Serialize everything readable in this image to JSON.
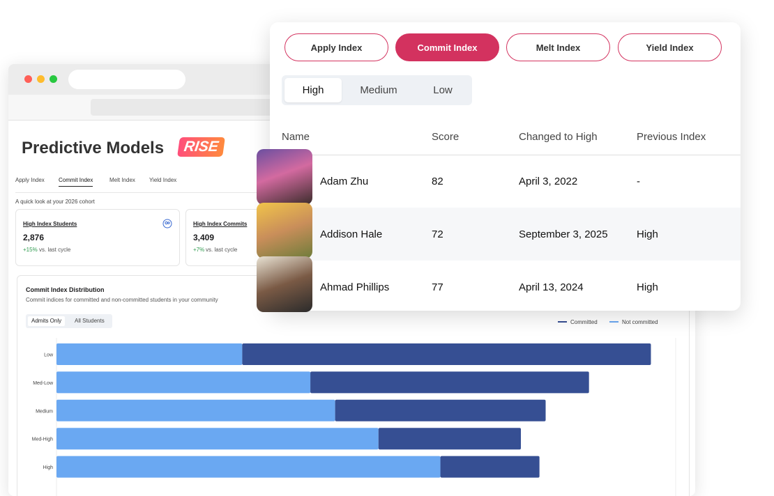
{
  "page": {
    "title": "Predictive Models",
    "badge": "RISE",
    "tabs": [
      "Apply Index",
      "Commit Index",
      "Melt Index",
      "Yield Index"
    ],
    "cohort_note": "A quick look at your 2026 cohort",
    "cards": [
      {
        "label": "High Index Students",
        "value": "2,876",
        "change": "+15%",
        "change_suffix": "vs. last cycle"
      },
      {
        "label": "High Index Commits",
        "value": "3,409",
        "change": "+7%",
        "change_suffix": "vs. last cycle"
      }
    ],
    "chart_toggle": [
      "Admits Only",
      "All Students"
    ],
    "chart_data": {
      "type": "bar",
      "orientation": "horizontal",
      "stacked": true,
      "title": "Commit Index Distribution",
      "subtitle": "Commit indices for committed and non-committed students in your community",
      "categories": [
        "Low",
        "Med-Low",
        "Medium",
        "Med-High",
        "High"
      ],
      "series": [
        {
          "name": "Not committed",
          "color": "#6aa8f2",
          "values": [
            30,
            41,
            45,
            52,
            62
          ]
        },
        {
          "name": "Committed",
          "color": "#364f93",
          "values": [
            66,
            45,
            34,
            23,
            16
          ]
        }
      ],
      "xlim": [
        0,
        100
      ]
    }
  },
  "overlay": {
    "index_buttons": [
      "Apply Index",
      "Commit Index",
      "Melt Index",
      "Yield Index"
    ],
    "levels": [
      "High",
      "Medium",
      "Low"
    ],
    "table": {
      "columns": [
        "Name",
        "Score",
        "Changed to High",
        "Previous Index"
      ],
      "rows": [
        [
          "Adam Zhu",
          "82",
          "April 3, 2022",
          "-"
        ],
        [
          "Addison Hale",
          "72",
          "September 3, 2025",
          "High"
        ],
        [
          "Ahmad Phillips",
          "77",
          "April 13, 2024",
          "High"
        ]
      ]
    }
  }
}
